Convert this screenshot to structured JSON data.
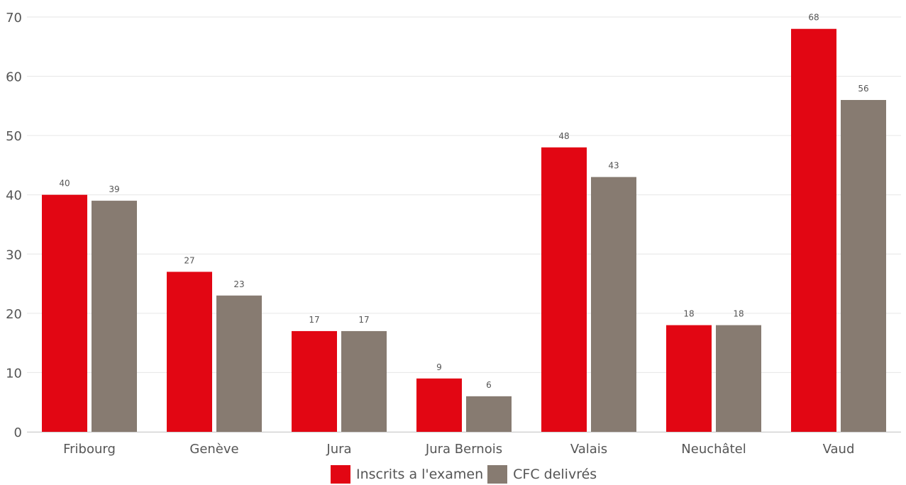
{
  "chart_data": {
    "type": "bar",
    "categories": [
      "Fribourg",
      "Genève",
      "Jura",
      "Jura Bernois",
      "Valais",
      "Neuchâtel",
      "Vaud"
    ],
    "series": [
      {
        "name": "Inscrits a l'examen",
        "values": [
          40,
          27,
          17,
          9,
          48,
          18,
          68
        ],
        "color": "#e20613"
      },
      {
        "name": "CFC delivrés",
        "values": [
          39,
          23,
          17,
          6,
          43,
          18,
          56
        ],
        "color": "#877b71"
      }
    ],
    "title": "",
    "xlabel": "",
    "ylabel": "",
    "ylim": [
      0,
      70
    ],
    "yticks": [
      0,
      10,
      20,
      30,
      40,
      50,
      60,
      70
    ],
    "grid": true,
    "legend_position": "bottom-center",
    "data_labels": true
  }
}
